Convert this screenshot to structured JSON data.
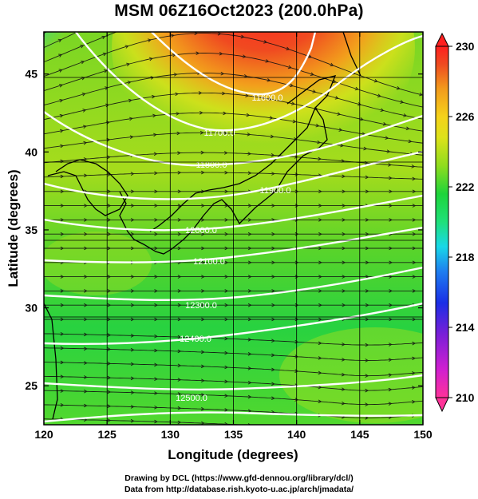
{
  "title": "MSM 06Z16Oct2023 (200.0hPa)",
  "credits": {
    "line1": "Drawing by DCL (https://www.gfd-dennou.org/library/dcl/)",
    "line2": "Data from http://database.rish.kyoto-u.ac.jp/arch/jmadata/"
  },
  "map": {
    "xlabel": "Longitude (degrees)",
    "ylabel": "Latitude  (degrees)",
    "xlim": [
      120,
      150
    ],
    "ylim": [
      22.5,
      47.7
    ],
    "xticks": [
      "120",
      "125",
      "130",
      "135",
      "140",
      "145",
      "150"
    ],
    "yticks": [
      "25",
      "30",
      "35",
      "40",
      "45"
    ]
  },
  "colorbar": {
    "min": 210,
    "max": 230,
    "tick_labels": [
      "230",
      "226",
      "222",
      "218",
      "214",
      "210"
    ],
    "colors": [
      "#ff3399",
      "#d020d0",
      "#7a1fd8",
      "#1a2ee6",
      "#1e7ff0",
      "#18d8e8",
      "#1fe07a",
      "#1ed43a",
      "#8fdc1e",
      "#dde21a",
      "#f5d21a",
      "#f29a1c",
      "#ef4a20",
      "#ff2020"
    ]
  },
  "contours": [
    {
      "label": "11600.0",
      "value": 11600
    },
    {
      "label": "11700.0",
      "value": 11700
    },
    {
      "label": "11800.0",
      "value": 11800
    },
    {
      "label": "11900.0",
      "value": 11900
    },
    {
      "label": "12000.0",
      "value": 12000
    },
    {
      "label": "12100.0",
      "value": 12100
    },
    {
      "label": "12200.0",
      "value": 12200
    },
    {
      "label": "12300.0",
      "value": 12300
    },
    {
      "label": "12400.0",
      "value": 12400
    },
    {
      "label": "12500.0",
      "value": 12500
    }
  ],
  "field": "temperature shading (K), geopotential height contours (m), wind streamlines"
}
